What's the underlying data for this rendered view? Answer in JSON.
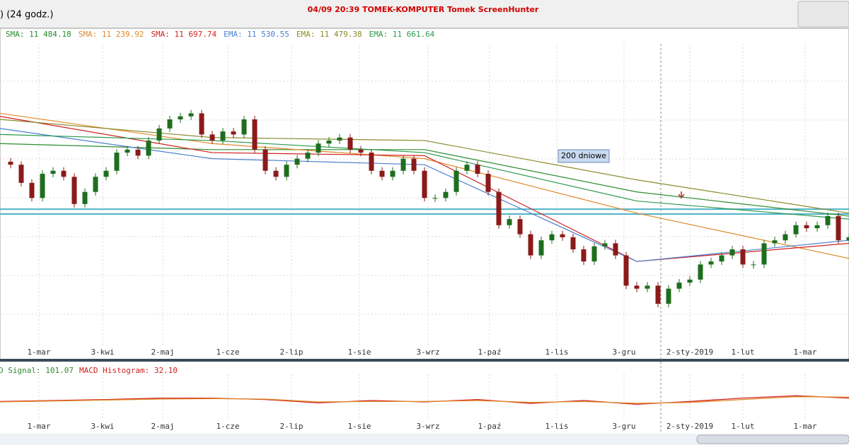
{
  "window": {
    "title_left": ") (24 godz.)",
    "title_center": "04/09 20:39 TOMEK-KOMPUTER Tomek ScreenHunter"
  },
  "chart_data": {
    "type": "candlestick",
    "legend": [
      {
        "text": "SMA: 11 484.18",
        "color": "#2e8b2e"
      },
      {
        "text": "SMA: 11 239.92",
        "color": "#e08a2a"
      },
      {
        "text": "SMA: 11 697.74",
        "color": "#d02020"
      },
      {
        "text": "EMA: 11 530.55",
        "color": "#4a7fd0"
      },
      {
        "text": "EMA: 11 479.38",
        "color": "#8a8a2a"
      },
      {
        "text": "EMA: 11 661.64",
        "color": "#2a9a4a"
      }
    ],
    "close": [
      61,
      60,
      54,
      49,
      57,
      58,
      56,
      47,
      51,
      56,
      58,
      64,
      65,
      63,
      68,
      72,
      75,
      76,
      77,
      70,
      68,
      71,
      70,
      75,
      65,
      58,
      56,
      60,
      62,
      64,
      67,
      68,
      69,
      65,
      64,
      58,
      56,
      58,
      62,
      58,
      49,
      49,
      51,
      58,
      60,
      57,
      51,
      40,
      42,
      37,
      30,
      35,
      37,
      36,
      32,
      28,
      33,
      34,
      30,
      20,
      19,
      20,
      14,
      19,
      21,
      22,
      27,
      28,
      30,
      32,
      27,
      27,
      34,
      35,
      37,
      40,
      39,
      40,
      43,
      35,
      36
    ],
    "up_color": "#1e6e1e",
    "down_color": "#8b1a1a",
    "ylim": [
      0,
      100
    ],
    "ma_lines": [
      {
        "color": "#2e8b2e",
        "values": [
          67,
          65,
          65,
          51,
          43
        ]
      },
      {
        "color": "#e08a2a",
        "values": [
          77,
          67,
          62,
          44,
          29
        ]
      },
      {
        "color": "#d02020",
        "values": [
          76,
          64,
          63,
          28,
          34
        ]
      },
      {
        "color": "#4a7fd0",
        "values": [
          72,
          62,
          60,
          28,
          35
        ]
      },
      {
        "color": "#8a8a2a",
        "values": [
          75,
          69,
          68,
          55,
          44
        ]
      },
      {
        "color": "#2a9a4a",
        "values": [
          70,
          68,
          64,
          48,
          42
        ]
      }
    ],
    "levels": [
      45.3,
      43.7
    ],
    "annotation": "200 dniowe",
    "x_labels": [
      "1-mar",
      "3-kwi",
      "2-maj",
      "1-cze",
      "2-lip",
      "1-sie",
      "3-wrz",
      "1-paź",
      "1-lis",
      "3-gru",
      "2-sty-2019",
      "1-lut",
      "1-mar"
    ],
    "macd": {
      "legend": [
        {
          "text": "D Signal: 101.07",
          "color": "#2e8b2e"
        },
        {
          "text": "MACD Histogram: 32.10",
          "color": "#d02020"
        }
      ],
      "ylim": [
        -20,
        20
      ],
      "macd_values": [
        -1,
        0,
        1,
        2.5,
        2.5,
        1,
        -2.5,
        0,
        -1.5,
        1,
        -3,
        0,
        -4,
        -1,
        2.5,
        5,
        2.5
      ],
      "signal_values": [
        -1.5,
        -0.5,
        0.5,
        1.5,
        2,
        1.5,
        -1.5,
        -1,
        -1,
        0,
        -2,
        -1,
        -3,
        -2,
        1,
        4,
        3.5
      ],
      "macd_color": "#d02020",
      "signal_color": "#e08a2a"
    }
  }
}
